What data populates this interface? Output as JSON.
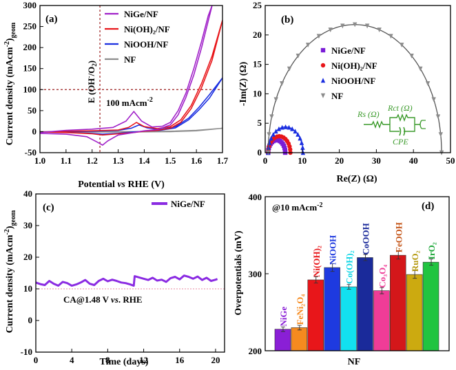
{
  "chart_data": [
    {
      "panel": "(a)",
      "type": "line",
      "xlabel": "Potential vs RHE (V)",
      "ylabel": "Current density (mAcm-2)geom",
      "xlim": [
        1.0,
        1.7
      ],
      "ylim": [
        -50,
        300
      ],
      "xticks": [
        "1.0",
        "1.1",
        "1.2",
        "1.3",
        "1.4",
        "1.5",
        "1.6",
        "1.7"
      ],
      "yticks": [
        "-50",
        "0",
        "50",
        "100",
        "150",
        "200",
        "250",
        "300"
      ],
      "annotations": {
        "vertical_line_label": "E (OH⁻/O₂)",
        "horizontal_line_label": "100 mAcm⁻²",
        "vertical_line_x": 1.23,
        "horizontal_line_y": 100
      },
      "series": [
        {
          "name": "NiGe/NF",
          "color": "#a020c8",
          "forward": [
            [
              1.0,
              -2
            ],
            [
              1.1,
              3
            ],
            [
              1.2,
              6
            ],
            [
              1.28,
              10
            ],
            [
              1.33,
              25
            ],
            [
              1.36,
              48
            ],
            [
              1.39,
              25
            ],
            [
              1.43,
              11
            ],
            [
              1.47,
              13
            ],
            [
              1.5,
              22
            ],
            [
              1.53,
              50
            ],
            [
              1.56,
              92
            ],
            [
              1.59,
              150
            ],
            [
              1.62,
              215
            ],
            [
              1.645,
              275
            ],
            [
              1.66,
              300
            ]
          ],
          "reverse": [
            [
              1.66,
              300
            ],
            [
              1.62,
              200
            ],
            [
              1.59,
              135
            ],
            [
              1.56,
              82
            ],
            [
              1.53,
              40
            ],
            [
              1.5,
              16
            ],
            [
              1.45,
              5
            ],
            [
              1.4,
              2
            ],
            [
              1.36,
              -2
            ],
            [
              1.3,
              -8
            ],
            [
              1.26,
              -22
            ],
            [
              1.24,
              -32
            ],
            [
              1.22,
              -25
            ],
            [
              1.18,
              -12
            ],
            [
              1.1,
              -6
            ],
            [
              1.0,
              -4
            ]
          ]
        },
        {
          "name": "Ni(OH)₂/NF",
          "color": "#e8161a",
          "forward": [
            [
              1.0,
              -1
            ],
            [
              1.1,
              1
            ],
            [
              1.2,
              2
            ],
            [
              1.3,
              4
            ],
            [
              1.34,
              10
            ],
            [
              1.37,
              22
            ],
            [
              1.4,
              12
            ],
            [
              1.45,
              7
            ],
            [
              1.5,
              12
            ],
            [
              1.54,
              28
            ],
            [
              1.58,
              62
            ],
            [
              1.62,
              115
            ],
            [
              1.66,
              180
            ],
            [
              1.7,
              265
            ]
          ],
          "reverse": [
            [
              1.7,
              265
            ],
            [
              1.66,
              170
            ],
            [
              1.62,
              105
            ],
            [
              1.58,
              55
            ],
            [
              1.54,
              22
            ],
            [
              1.5,
              8
            ],
            [
              1.45,
              3
            ],
            [
              1.4,
              1
            ],
            [
              1.36,
              -2
            ],
            [
              1.3,
              -5
            ],
            [
              1.24,
              -8
            ],
            [
              1.2,
              -5
            ],
            [
              1.1,
              -2
            ],
            [
              1.0,
              -1
            ]
          ]
        },
        {
          "name": "NiOOH/NF",
          "color": "#1a2ee0",
          "forward": [
            [
              1.0,
              -1
            ],
            [
              1.1,
              0
            ],
            [
              1.2,
              1
            ],
            [
              1.3,
              3
            ],
            [
              1.35,
              8
            ],
            [
              1.38,
              16
            ],
            [
              1.41,
              9
            ],
            [
              1.46,
              5
            ],
            [
              1.52,
              12
            ],
            [
              1.57,
              32
            ],
            [
              1.61,
              58
            ],
            [
              1.65,
              88
            ],
            [
              1.7,
              128
            ]
          ],
          "reverse": [
            [
              1.7,
              128
            ],
            [
              1.65,
              80
            ],
            [
              1.61,
              52
            ],
            [
              1.57,
              28
            ],
            [
              1.52,
              9
            ],
            [
              1.46,
              3
            ],
            [
              1.4,
              1
            ],
            [
              1.35,
              -1
            ],
            [
              1.3,
              -4
            ],
            [
              1.24,
              -6
            ],
            [
              1.2,
              -4
            ],
            [
              1.1,
              -2
            ],
            [
              1.0,
              -1
            ]
          ]
        },
        {
          "name": "NF",
          "color": "#8c8c8c",
          "forward": [
            [
              1.0,
              0
            ],
            [
              1.2,
              0
            ],
            [
              1.4,
              0
            ],
            [
              1.5,
              1
            ],
            [
              1.6,
              3
            ],
            [
              1.7,
              8
            ]
          ],
          "reverse": [
            [
              1.7,
              8
            ],
            [
              1.6,
              2
            ],
            [
              1.5,
              0
            ],
            [
              1.3,
              -1
            ],
            [
              1.1,
              -1
            ],
            [
              1.0,
              0
            ]
          ]
        }
      ]
    },
    {
      "panel": "(b)",
      "type": "scatter",
      "xlabel": "Re(Z) (Ω)",
      "ylabel": "-Im(Z) (Ω)",
      "xlim": [
        0,
        50
      ],
      "ylim": [
        0,
        25
      ],
      "xticks": [
        "0",
        "10",
        "20",
        "30",
        "40",
        "50"
      ],
      "yticks": [
        "0",
        "5",
        "10",
        "15",
        "20",
        "25"
      ],
      "circuit_labels": {
        "rs": "Rs (Ω)",
        "rct": "Rct (Ω)",
        "cpe": "CPE"
      },
      "series": [
        {
          "name": "NiGe/NF",
          "color": "#7a1cd6",
          "marker": "square",
          "rs": 0.8,
          "rct": 4.6
        },
        {
          "name": "Ni(OH)₂/NF",
          "color": "#e8161a",
          "marker": "circle",
          "rs": 0.8,
          "rct": 6.0
        },
        {
          "name": "NiOOH/NF",
          "color": "#1a2ee0",
          "marker": "triangle",
          "rs": 0.8,
          "rct": 9.4
        },
        {
          "name": "NF",
          "color": "#8c8c8c",
          "marker": "triangle-down",
          "rs": 0.8,
          "rct": 46.8
        }
      ]
    },
    {
      "panel": "(c)",
      "type": "line",
      "xlabel": "Time (days)",
      "ylabel": "Current density (mAcm-2)geom",
      "xlim": [
        0,
        21
      ],
      "ylim": [
        -10,
        40
      ],
      "xticks": [
        "0",
        "4",
        "8",
        "12",
        "16",
        "20"
      ],
      "yticks": [
        "-10",
        "0",
        "10",
        "20",
        "30",
        "40"
      ],
      "annotation": "CA@1.48 V vs. RHE",
      "reference_line_y": 10,
      "series": [
        {
          "name": "NiGe/NF",
          "color": "#8a2be2",
          "x": [
            0,
            0.5,
            1,
            1.5,
            2,
            2.5,
            3,
            3.5,
            4,
            4.5,
            5,
            5.5,
            6,
            6.5,
            7,
            7.5,
            8,
            8.5,
            9,
            9.5,
            10,
            10.5,
            10.9,
            11,
            11.5,
            12,
            12.5,
            13,
            13.5,
            14,
            14.5,
            15,
            15.5,
            16,
            16.5,
            17,
            17.5,
            18,
            18.5,
            19,
            19.5,
            20,
            20.2
          ],
          "y": [
            12.0,
            11.5,
            11.2,
            12.5,
            11.6,
            11.0,
            12.2,
            11.8,
            11.0,
            11.4,
            12.0,
            12.8,
            11.6,
            11.2,
            12.5,
            13.2,
            12.4,
            12.9,
            12.5,
            12.0,
            11.8,
            11.4,
            11.0,
            14.0,
            13.6,
            13.2,
            12.8,
            13.5,
            12.6,
            12.9,
            12.2,
            13.4,
            13.8,
            13.0,
            14.2,
            13.8,
            13.2,
            13.9,
            12.8,
            13.5,
            12.5,
            12.9,
            13.1
          ]
        }
      ]
    },
    {
      "panel": "(d)",
      "type": "bar",
      "xlabel": "NF",
      "ylabel": "Overpotentials (mV)",
      "ylim": [
        200,
        400
      ],
      "yticks": [
        "200",
        "300",
        "400"
      ],
      "annotation": "@10 mAcm-2",
      "categories": [
        "NiGe",
        "FeNi₂O₄",
        "Ni(OH)₂",
        "NiOOH",
        "Co(OH)₂",
        "CoOOH",
        "Co₃O₄",
        "FeOOH",
        "RuO₂",
        "IrO₂"
      ],
      "values": [
        228,
        230,
        292,
        308,
        283,
        321,
        278,
        324,
        299,
        315
      ],
      "errors": [
        3,
        3,
        4,
        5,
        3,
        4,
        4,
        5,
        5,
        4
      ],
      "colors": [
        "#8a1fd6",
        "#f58a1f",
        "#e8161a",
        "#1e3ae0",
        "#12e0ef",
        "#1a2a9a",
        "#ef3c97",
        "#d4171a",
        "#ccaa10",
        "#20c440"
      ],
      "label_colors": [
        "#8a1fd6",
        "#f58a1f",
        "#e8161a",
        "#1e3ae0",
        "#12d6e6",
        "#1a2a9a",
        "#ef3c97",
        "#c4561a",
        "#b59a10",
        "#1ea83a"
      ]
    }
  ]
}
